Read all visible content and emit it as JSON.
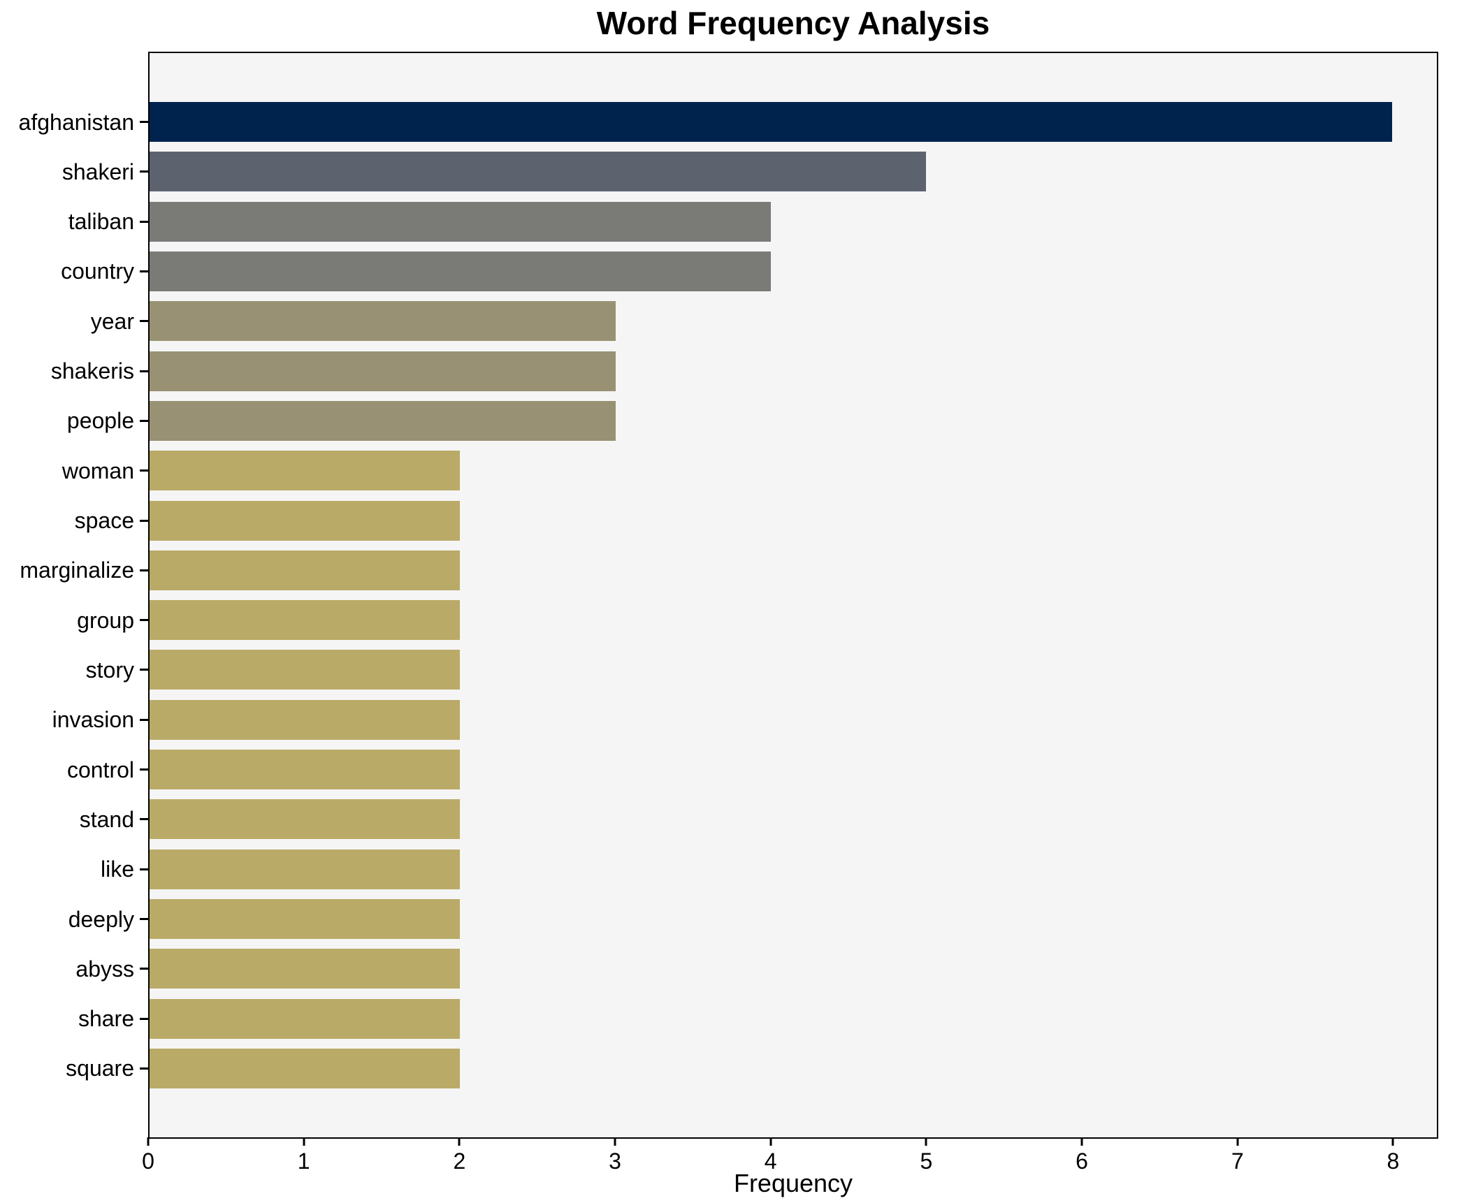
{
  "chart_data": {
    "type": "bar",
    "orientation": "horizontal",
    "title": "Word Frequency Analysis",
    "xlabel": "Frequency",
    "ylabel": "",
    "categories": [
      "afghanistan",
      "shakeri",
      "taliban",
      "country",
      "year",
      "shakeris",
      "people",
      "woman",
      "space",
      "marginalize",
      "group",
      "story",
      "invasion",
      "control",
      "stand",
      "like",
      "deeply",
      "abyss",
      "share",
      "square"
    ],
    "values": [
      8,
      5,
      4,
      4,
      3,
      3,
      3,
      2,
      2,
      2,
      2,
      2,
      2,
      2,
      2,
      2,
      2,
      2,
      2,
      2
    ],
    "bar_colors": [
      "#00234e",
      "#5d626f",
      "#7a7a76",
      "#7a7a76",
      "#989173",
      "#989173",
      "#989173",
      "#b9aa67",
      "#b9aa67",
      "#b9aa67",
      "#b9aa67",
      "#b9aa67",
      "#b9aa67",
      "#b9aa67",
      "#b9aa67",
      "#b9aa67",
      "#b9aa67",
      "#b9aa67",
      "#b9aa67",
      "#b9aa67"
    ],
    "xticks": [
      0,
      1,
      2,
      3,
      4,
      5,
      6,
      7,
      8
    ],
    "xlim": [
      0,
      8.29
    ],
    "grid": false,
    "legend": false,
    "plot_background": "#f5f5f6",
    "figure_background": "#ffffff",
    "spine_color": "#000000"
  }
}
